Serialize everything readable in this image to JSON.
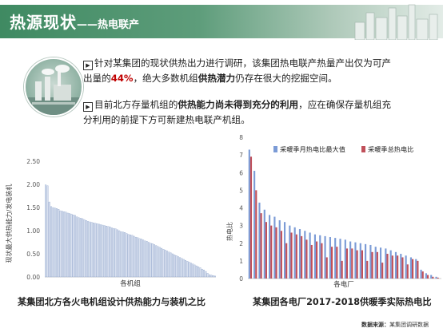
{
  "header": {
    "title": "热源现状",
    "subtitle": "——热电联产"
  },
  "bullets": [
    {
      "mark": "▶",
      "parts": [
        {
          "text": "针对某集团的现状供热出力进行调研，该集团热电联产热量产出仅为可产出量的",
          "style": "normal"
        },
        {
          "text": "44%",
          "style": "red-bold"
        },
        {
          "text": "，绝大多数机组",
          "style": "normal"
        },
        {
          "text": "供热潜力",
          "style": "bold"
        },
        {
          "text": "仍存在很大的挖掘空间。",
          "style": "normal"
        }
      ]
    },
    {
      "mark": "▶",
      "parts": [
        {
          "text": "目前北方存量机组的",
          "style": "normal"
        },
        {
          "text": "供热能力尚未得到充分的利用",
          "style": "bold"
        },
        {
          "text": "，应在确保存量机组充分利用的前提下方可新建热电联产机组。",
          "style": "normal"
        }
      ]
    }
  ],
  "chart_data": [
    {
      "type": "bar",
      "title": "某集团北方各火电机组设计供热能力与装机之比",
      "xlabel": "各机组",
      "ylabel": "现状最大供热能力/发电装机",
      "ylim": [
        0,
        2.5
      ],
      "yticks": [
        "0.00",
        "0.50",
        "1.00",
        "1.50",
        "2.00",
        "2.50"
      ],
      "series": [
        {
          "values": [
            1.99,
            1.97,
            1.62,
            1.52,
            1.5,
            1.49,
            1.48,
            1.46,
            1.43,
            1.42,
            1.41,
            1.4,
            1.38,
            1.37,
            1.36,
            1.34,
            1.33,
            1.3,
            1.28,
            1.27,
            1.26,
            1.24,
            1.22,
            1.2,
            1.19,
            1.18,
            1.17,
            1.16,
            1.15,
            1.14,
            1.13,
            1.12,
            1.11,
            1.1,
            1.09,
            1.08,
            1.06,
            1.05,
            1.04,
            1.02,
            1.0,
            0.98,
            0.97,
            0.96,
            0.94,
            0.92,
            0.91,
            0.9,
            0.88,
            0.86,
            0.85,
            0.83,
            0.82,
            0.8,
            0.78,
            0.77,
            0.75,
            0.73,
            0.72,
            0.7,
            0.68,
            0.66,
            0.64,
            0.62,
            0.6,
            0.58,
            0.56,
            0.54,
            0.52,
            0.5,
            0.48,
            0.46,
            0.44,
            0.42,
            0.4,
            0.38,
            0.36,
            0.34,
            0.32,
            0.3,
            0.28,
            0.26,
            0.24,
            0.22,
            0.2,
            0.17,
            0.15,
            0.12,
            0.08,
            0.05,
            0.04,
            0.03,
            0.02
          ]
        }
      ]
    },
    {
      "type": "bar",
      "title": "某集团各电厂2017-2018供暖季实际热电比",
      "xlabel": "各电厂",
      "ylabel": "热电比",
      "ylim": [
        0,
        8
      ],
      "yticks": [
        "0",
        "1",
        "2",
        "3",
        "4",
        "5",
        "6",
        "7",
        "8"
      ],
      "series": [
        {
          "name": "采暖季月热电比最大值",
          "color": "#7b9bd6",
          "values": [
            7.3,
            6.1,
            4.3,
            3.9,
            3.6,
            3.5,
            3.3,
            3.2,
            3.0,
            2.9,
            2.8,
            2.7,
            2.6,
            2.5,
            2.45,
            2.4,
            2.35,
            2.3,
            2.25,
            2.2,
            2.1,
            2.05,
            2.0,
            1.95,
            1.9,
            1.8,
            1.75,
            1.7,
            1.6,
            1.5,
            1.4,
            1.3,
            1.2,
            1.1,
            0.5,
            0.3,
            0.2,
            0.1
          ]
        },
        {
          "name": "采暖季总热电比",
          "color": "#c0505a",
          "values": [
            6.9,
            5.0,
            3.7,
            3.2,
            3.0,
            2.9,
            2.7,
            2.0,
            2.6,
            2.5,
            2.4,
            2.2,
            1.9,
            2.1,
            2.0,
            1.2,
            1.8,
            1.8,
            1.0,
            1.7,
            1.7,
            1.6,
            1.6,
            1.0,
            1.5,
            1.5,
            0.9,
            1.4,
            1.3,
            1.3,
            1.2,
            0.8,
            1.1,
            1.0,
            0.4,
            0.2,
            0.1,
            0.05
          ]
        }
      ]
    }
  ],
  "source": {
    "label": "数据来源：",
    "text": "某集团调研数据"
  }
}
